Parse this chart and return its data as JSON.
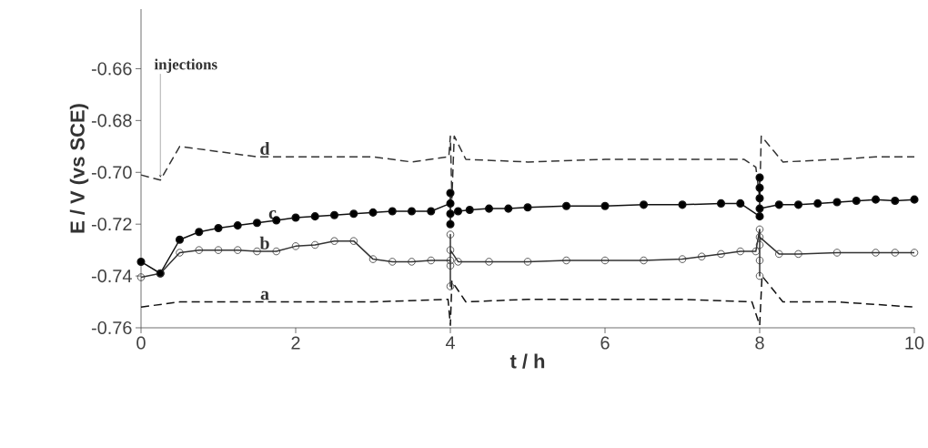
{
  "chart_data": {
    "type": "line",
    "xlabel": "t / h",
    "ylabel": "E / V (vs SCE)",
    "xlim": [
      0,
      10
    ],
    "ylim": [
      -0.76,
      -0.637
    ],
    "xticks": [
      0,
      2,
      4,
      6,
      8,
      10
    ],
    "yticks": [
      -0.76,
      -0.74,
      -0.72,
      {
        "value": -0.7,
        "label": "-0.70"
      },
      -0.68,
      -0.66
    ],
    "grid": false,
    "series": [
      {
        "color": "#333333",
        "line_style": "dashed",
        "marker": "none",
        "x": [
          0,
          0.25,
          0.5,
          1,
          1.5,
          2,
          3,
          3.5,
          3.98,
          4.0,
          4.02,
          4.05,
          4.2,
          5,
          6,
          7,
          7.8,
          7.95,
          8.0,
          8.02,
          8.3,
          9,
          9.5,
          10
        ],
        "values": [
          -0.701,
          -0.703,
          -0.69,
          -0.692,
          -0.694,
          -0.694,
          -0.694,
          -0.696,
          -0.694,
          -0.686,
          -0.71,
          -0.686,
          -0.695,
          -0.696,
          -0.695,
          -0.695,
          -0.695,
          -0.698,
          -0.71,
          -0.686,
          -0.696,
          -0.695,
          -0.694,
          -0.694
        ]
      },
      {
        "color": "#111111",
        "line_style": "solid",
        "marker": "circle",
        "x": [
          0,
          0.25,
          0.5,
          0.75,
          1,
          1.25,
          1.5,
          1.75,
          2,
          2.25,
          2.5,
          2.75,
          3,
          3.25,
          3.5,
          3.75,
          4.0,
          4.0,
          4.0,
          4.0,
          4.1,
          4.25,
          4.5,
          4.75,
          5,
          5.5,
          6,
          6.5,
          7,
          7.5,
          7.75,
          8.0,
          8.0,
          8.0,
          8.0,
          8.0,
          8.25,
          8.5,
          8.75,
          9,
          9.25,
          9.5,
          9.75,
          10
        ],
        "values": [
          -0.7345,
          -0.739,
          -0.726,
          -0.723,
          -0.7215,
          -0.7205,
          -0.7195,
          -0.7185,
          -0.7175,
          -0.717,
          -0.7165,
          -0.716,
          -0.7155,
          -0.715,
          -0.715,
          -0.715,
          -0.712,
          -0.708,
          -0.72,
          -0.716,
          -0.715,
          -0.7145,
          -0.714,
          -0.714,
          -0.7135,
          -0.713,
          -0.713,
          -0.7125,
          -0.7125,
          -0.712,
          -0.712,
          -0.717,
          -0.702,
          -0.706,
          -0.71,
          -0.714,
          -0.7125,
          -0.7125,
          -0.712,
          -0.7115,
          -0.711,
          -0.7105,
          -0.711,
          -0.7105
        ]
      },
      {
        "color": "#333333",
        "line_style": "solid",
        "marker": "open circle",
        "x": [
          0,
          0.25,
          0.5,
          0.75,
          1,
          1.25,
          1.5,
          1.75,
          2,
          2.25,
          2.5,
          2.75,
          3,
          3.25,
          3.5,
          3.75,
          4.0,
          4.0,
          4.0,
          4.0,
          4.0,
          4.1,
          4.5,
          5,
          5.5,
          6,
          6.5,
          7,
          7.25,
          7.5,
          7.75,
          7.95,
          8.0,
          8.0,
          8.0,
          8.0,
          8.0,
          8.25,
          8.5,
          9,
          9.5,
          9.75,
          10
        ],
        "values": [
          -0.7405,
          -0.739,
          -0.731,
          -0.73,
          -0.73,
          -0.73,
          -0.7305,
          -0.7305,
          -0.7285,
          -0.728,
          -0.7265,
          -0.7265,
          -0.7335,
          -0.7345,
          -0.7345,
          -0.734,
          -0.734,
          -0.724,
          -0.744,
          -0.736,
          -0.73,
          -0.7345,
          -0.7345,
          -0.7345,
          -0.734,
          -0.734,
          -0.734,
          -0.7335,
          -0.7325,
          -0.7315,
          -0.7305,
          -0.7305,
          -0.722,
          -0.74,
          -0.734,
          -0.728,
          -0.725,
          -0.7315,
          -0.7315,
          -0.731,
          -0.731,
          -0.731,
          -0.731
        ]
      },
      {
        "color": "#111111",
        "line_style": "dashed",
        "marker": "none",
        "x": [
          0,
          0.5,
          2,
          3,
          3.97,
          4.0,
          4.02,
          4.2,
          5,
          6,
          7,
          7.9,
          8.0,
          8.03,
          8.3,
          9,
          10
        ],
        "values": [
          -0.752,
          -0.75,
          -0.75,
          -0.75,
          -0.749,
          -0.759,
          -0.742,
          -0.75,
          -0.749,
          -0.749,
          -0.749,
          -0.75,
          -0.759,
          -0.74,
          -0.75,
          -0.75,
          -0.752
        ]
      }
    ],
    "annotations": [
      {
        "text": "injections",
        "x": 0.25,
        "y": -0.702
      },
      {
        "text": "d",
        "x": 1.6,
        "y": -0.694
      },
      {
        "text": "c",
        "x": 1.7,
        "y": -0.7188
      },
      {
        "text": "b",
        "x": 1.6,
        "y": -0.7305
      },
      {
        "text": "a",
        "x": 1.6,
        "y": -0.75
      }
    ]
  }
}
